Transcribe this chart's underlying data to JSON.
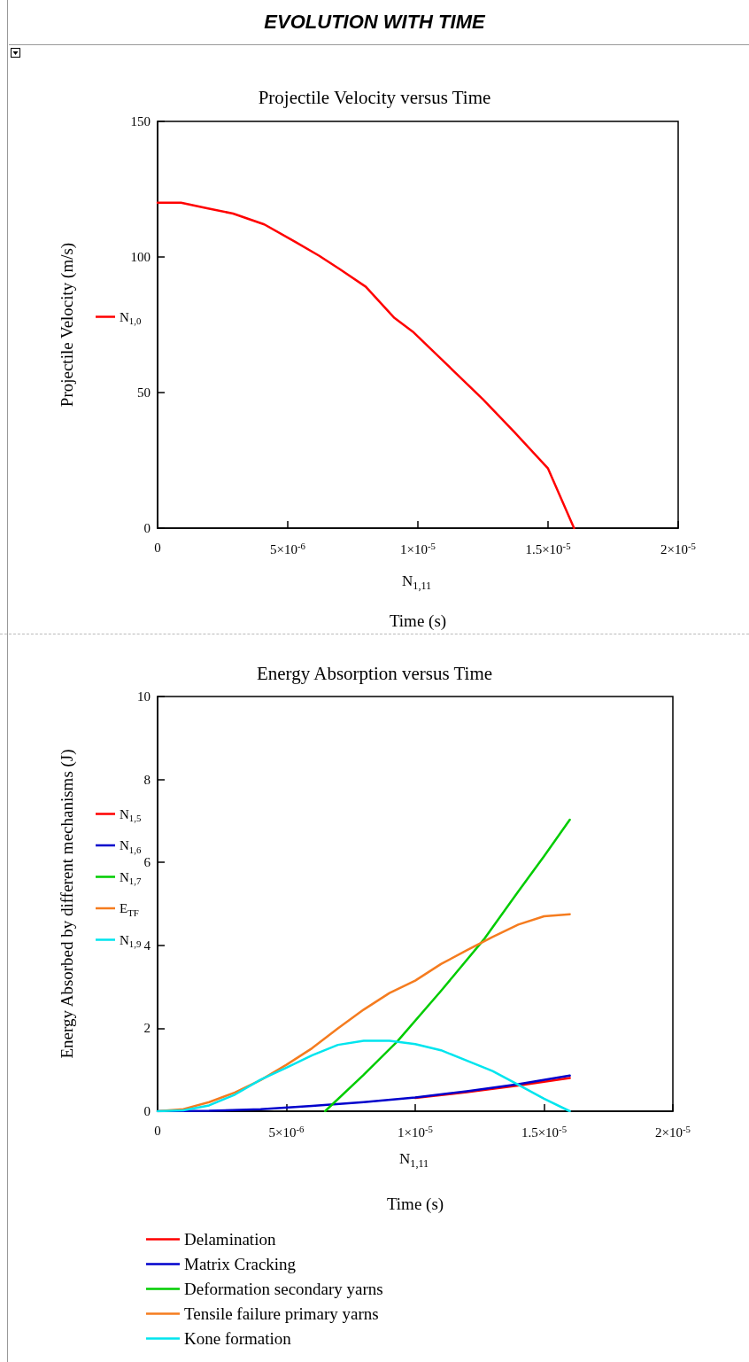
{
  "chart_data": [
    {
      "type": "line",
      "title": "EVOLUTION WITH TIME",
      "subtitle": "Projectile Velocity versus Time",
      "xlabel": "Time (s)",
      "ylabel": "Projectile Velocity (m/s)",
      "annotations": [
        "N$_{1,11}$"
      ],
      "legend": "left",
      "marker": "none",
      "xlim": [
        0,
        2e-05
      ],
      "xticks": [
        0,
        {
          "value": 5e-06,
          "label": "5×10$^{-6}$"
        },
        {
          "value": 1e-05,
          "label": "1×10$^{-5}$"
        },
        {
          "value": 1.5e-05,
          "label": "1.5×10$^{-5}$"
        },
        {
          "value": 2e-05,
          "label": "2×10$^{-5}$"
        }
      ],
      "ylim": [
        0,
        150
      ],
      "yticks": [
        0,
        50,
        100,
        150
      ],
      "series": [
        {
          "name": "N$_{1,0}$",
          "color": "#ff0000",
          "x": [
            0,
            9e-07,
            1.9e-06,
            2.9e-06,
            4.1e-06,
            5.3e-06,
            6.2e-06,
            7e-06,
            8e-06,
            9.1e-06,
            9.8e-06,
            1.11e-05,
            1.25e-05,
            1.37e-05,
            1.5e-05,
            1.6e-05
          ],
          "values": [
            120,
            120,
            118,
            116,
            112,
            105.5,
            100.5,
            95.5,
            89,
            77.5,
            72.5,
            60.5,
            47.5,
            35.5,
            22,
            0
          ]
        }
      ]
    },
    {
      "type": "line",
      "title": "Energy Absorption versus Time",
      "xlabel": "Time (s)",
      "ylabel": "Energy Absorbed by different mechanisms (J)",
      "annotations": [
        "N$_{1,11}$",
        "N$_{1,5}$",
        "N$_{1,6}$",
        "N$_{1,7}$",
        "E$_{TF}$",
        "N$_{1,9}$"
      ],
      "legend": "bottom",
      "marker": "none",
      "xlim": [
        0,
        2e-05
      ],
      "xticks": [
        0,
        {
          "value": 5e-06,
          "label": "5×10$^{-6}$"
        },
        {
          "value": 1e-05,
          "label": "1×10$^{-5}$"
        },
        {
          "value": 1.5e-05,
          "label": "1.5×10$^{-5}$"
        },
        {
          "value": 2e-05,
          "label": "2×10$^{-5}$"
        }
      ],
      "ylim": [
        0,
        10
      ],
      "yticks": [
        0,
        2,
        4,
        6,
        8,
        10
      ],
      "series": [
        {
          "name": "Delamination",
          "color": "#ff0000",
          "x": [
            1e-05,
            1.2e-05,
            1.4e-05,
            1.6e-05
          ],
          "values": [
            0.32,
            0.46,
            0.62,
            0.8
          ]
        },
        {
          "name": "Matrix Cracking",
          "color": "#0000cc",
          "x": [
            0,
            2e-06,
            4e-06,
            6e-06,
            8e-06,
            1e-05,
            1.2e-05,
            1.4e-05,
            1.6e-05
          ],
          "values": [
            0,
            0.01,
            0.05,
            0.13,
            0.22,
            0.33,
            0.48,
            0.65,
            0.86
          ]
        },
        {
          "name": "Deformation secondary yarns",
          "color": "#00cc00",
          "x": [
            6.5e-06,
            8e-06,
            9.3e-06,
            1.1e-05,
            1.27e-05,
            1.4e-05,
            1.5e-05,
            1.6e-05
          ],
          "values": [
            0,
            0.88,
            1.68,
            2.9,
            4.17,
            5.3,
            6.15,
            7.03
          ]
        },
        {
          "name": "Tensile failure primary yarns",
          "color": "#f57c1f",
          "x": [
            0,
            1e-06,
            2e-06,
            3e-06,
            4e-06,
            5e-06,
            6e-06,
            7e-06,
            8e-06,
            9e-06,
            1e-05,
            1.1e-05,
            1.2e-05,
            1.3e-05,
            1.4e-05,
            1.5e-05,
            1.6e-05
          ],
          "values": [
            0,
            0.05,
            0.22,
            0.45,
            0.75,
            1.12,
            1.52,
            2,
            2.45,
            2.85,
            3.15,
            3.55,
            3.88,
            4.2,
            4.5,
            4.7,
            4.75
          ]
        },
        {
          "name": "Kone formation",
          "color": "#00e5ee",
          "x": [
            0,
            1e-06,
            2e-06,
            3e-06,
            4e-06,
            5e-06,
            6e-06,
            7e-06,
            8e-06,
            9e-06,
            1e-05,
            1.1e-05,
            1.2e-05,
            1.3e-05,
            1.4e-05,
            1.5e-05,
            1.6e-05
          ],
          "values": [
            0,
            0.02,
            0.14,
            0.4,
            0.76,
            1.05,
            1.35,
            1.6,
            1.7,
            1.7,
            1.62,
            1.47,
            1.22,
            0.97,
            0.64,
            0.3,
            0
          ]
        }
      ]
    }
  ]
}
